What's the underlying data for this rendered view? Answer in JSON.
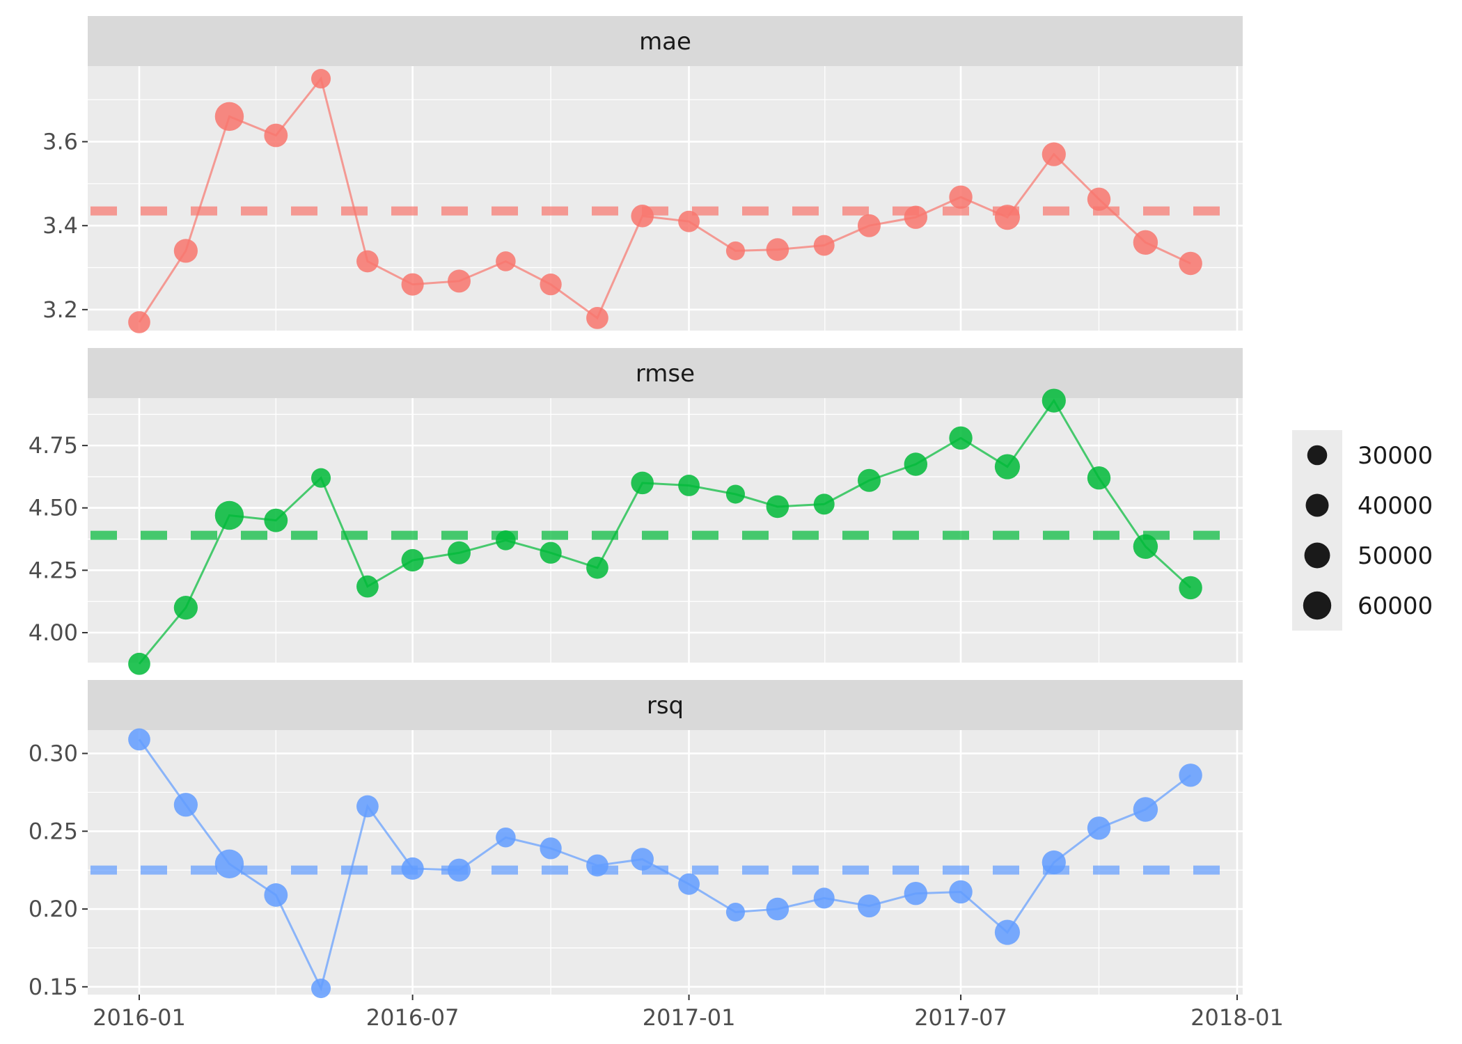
{
  "chart_data": {
    "type": "scatter",
    "x_axis": {
      "ticks": [
        "2016-01",
        "2016-07",
        "2017-01",
        "2017-07",
        "2018-01"
      ]
    },
    "dates": [
      "2016-01-01",
      "2016-02-01",
      "2016-03-01",
      "2016-04-01",
      "2016-05-01",
      "2016-06-01",
      "2016-07-01",
      "2016-08-01",
      "2016-09-01",
      "2016-10-01",
      "2016-11-01",
      "2016-12-01",
      "2017-01-01",
      "2017-02-01",
      "2017-03-01",
      "2017-04-01",
      "2017-05-01",
      "2017-06-01",
      "2017-07-01",
      "2017-08-01",
      "2017-09-01",
      "2017-10-01",
      "2017-11-01",
      "2017-12-01"
    ],
    "size_values": [
      37000,
      43000,
      63000,
      42000,
      29000,
      37000,
      38000,
      40000,
      30000,
      36000,
      37000,
      39000,
      35000,
      27000,
      39000,
      33000,
      40000,
      41000,
      41000,
      48000,
      43000,
      41000,
      46000,
      41000
    ],
    "size_legend": {
      "values": [
        30000,
        40000,
        50000,
        60000
      ]
    },
    "panels": [
      {
        "strip": "mae",
        "color": "#F8766D",
        "ylim": [
          3.15,
          3.78
        ],
        "y_ticks": [
          3.2,
          3.4,
          3.6
        ],
        "y_tick_labels": [
          "3.2",
          "3.4",
          "3.6"
        ],
        "mean": 3.435,
        "values": [
          3.17,
          3.34,
          3.66,
          3.615,
          3.75,
          3.315,
          3.26,
          3.268,
          3.315,
          3.26,
          3.18,
          3.423,
          3.41,
          3.34,
          3.343,
          3.353,
          3.4,
          3.42,
          3.468,
          3.42,
          3.57,
          3.463,
          3.36,
          3.31
        ]
      },
      {
        "strip": "rmse",
        "color": "#00BA38",
        "ylim": [
          3.88,
          4.94
        ],
        "y_ticks": [
          4.0,
          4.25,
          4.5,
          4.75
        ],
        "y_tick_labels": [
          "4.00",
          "4.25",
          "4.50",
          "4.75"
        ],
        "mean": 4.39,
        "values": [
          3.875,
          4.1,
          4.47,
          4.45,
          4.62,
          4.185,
          4.29,
          4.32,
          4.37,
          4.32,
          4.26,
          4.6,
          4.59,
          4.555,
          4.505,
          4.515,
          4.61,
          4.675,
          4.78,
          4.665,
          4.93,
          4.62,
          4.345,
          4.18
        ]
      },
      {
        "strip": "rsq",
        "color": "#619CFF",
        "ylim": [
          0.145,
          0.315
        ],
        "y_ticks": [
          0.15,
          0.2,
          0.25,
          0.3
        ],
        "y_tick_labels": [
          "0.15",
          "0.20",
          "0.25",
          "0.30"
        ],
        "mean": 0.225,
        "values": [
          0.309,
          0.267,
          0.229,
          0.209,
          0.149,
          0.266,
          0.226,
          0.225,
          0.246,
          0.239,
          0.228,
          0.232,
          0.216,
          0.198,
          0.2,
          0.207,
          0.202,
          0.21,
          0.211,
          0.185,
          0.23,
          0.252,
          0.264,
          0.286
        ]
      }
    ]
  }
}
